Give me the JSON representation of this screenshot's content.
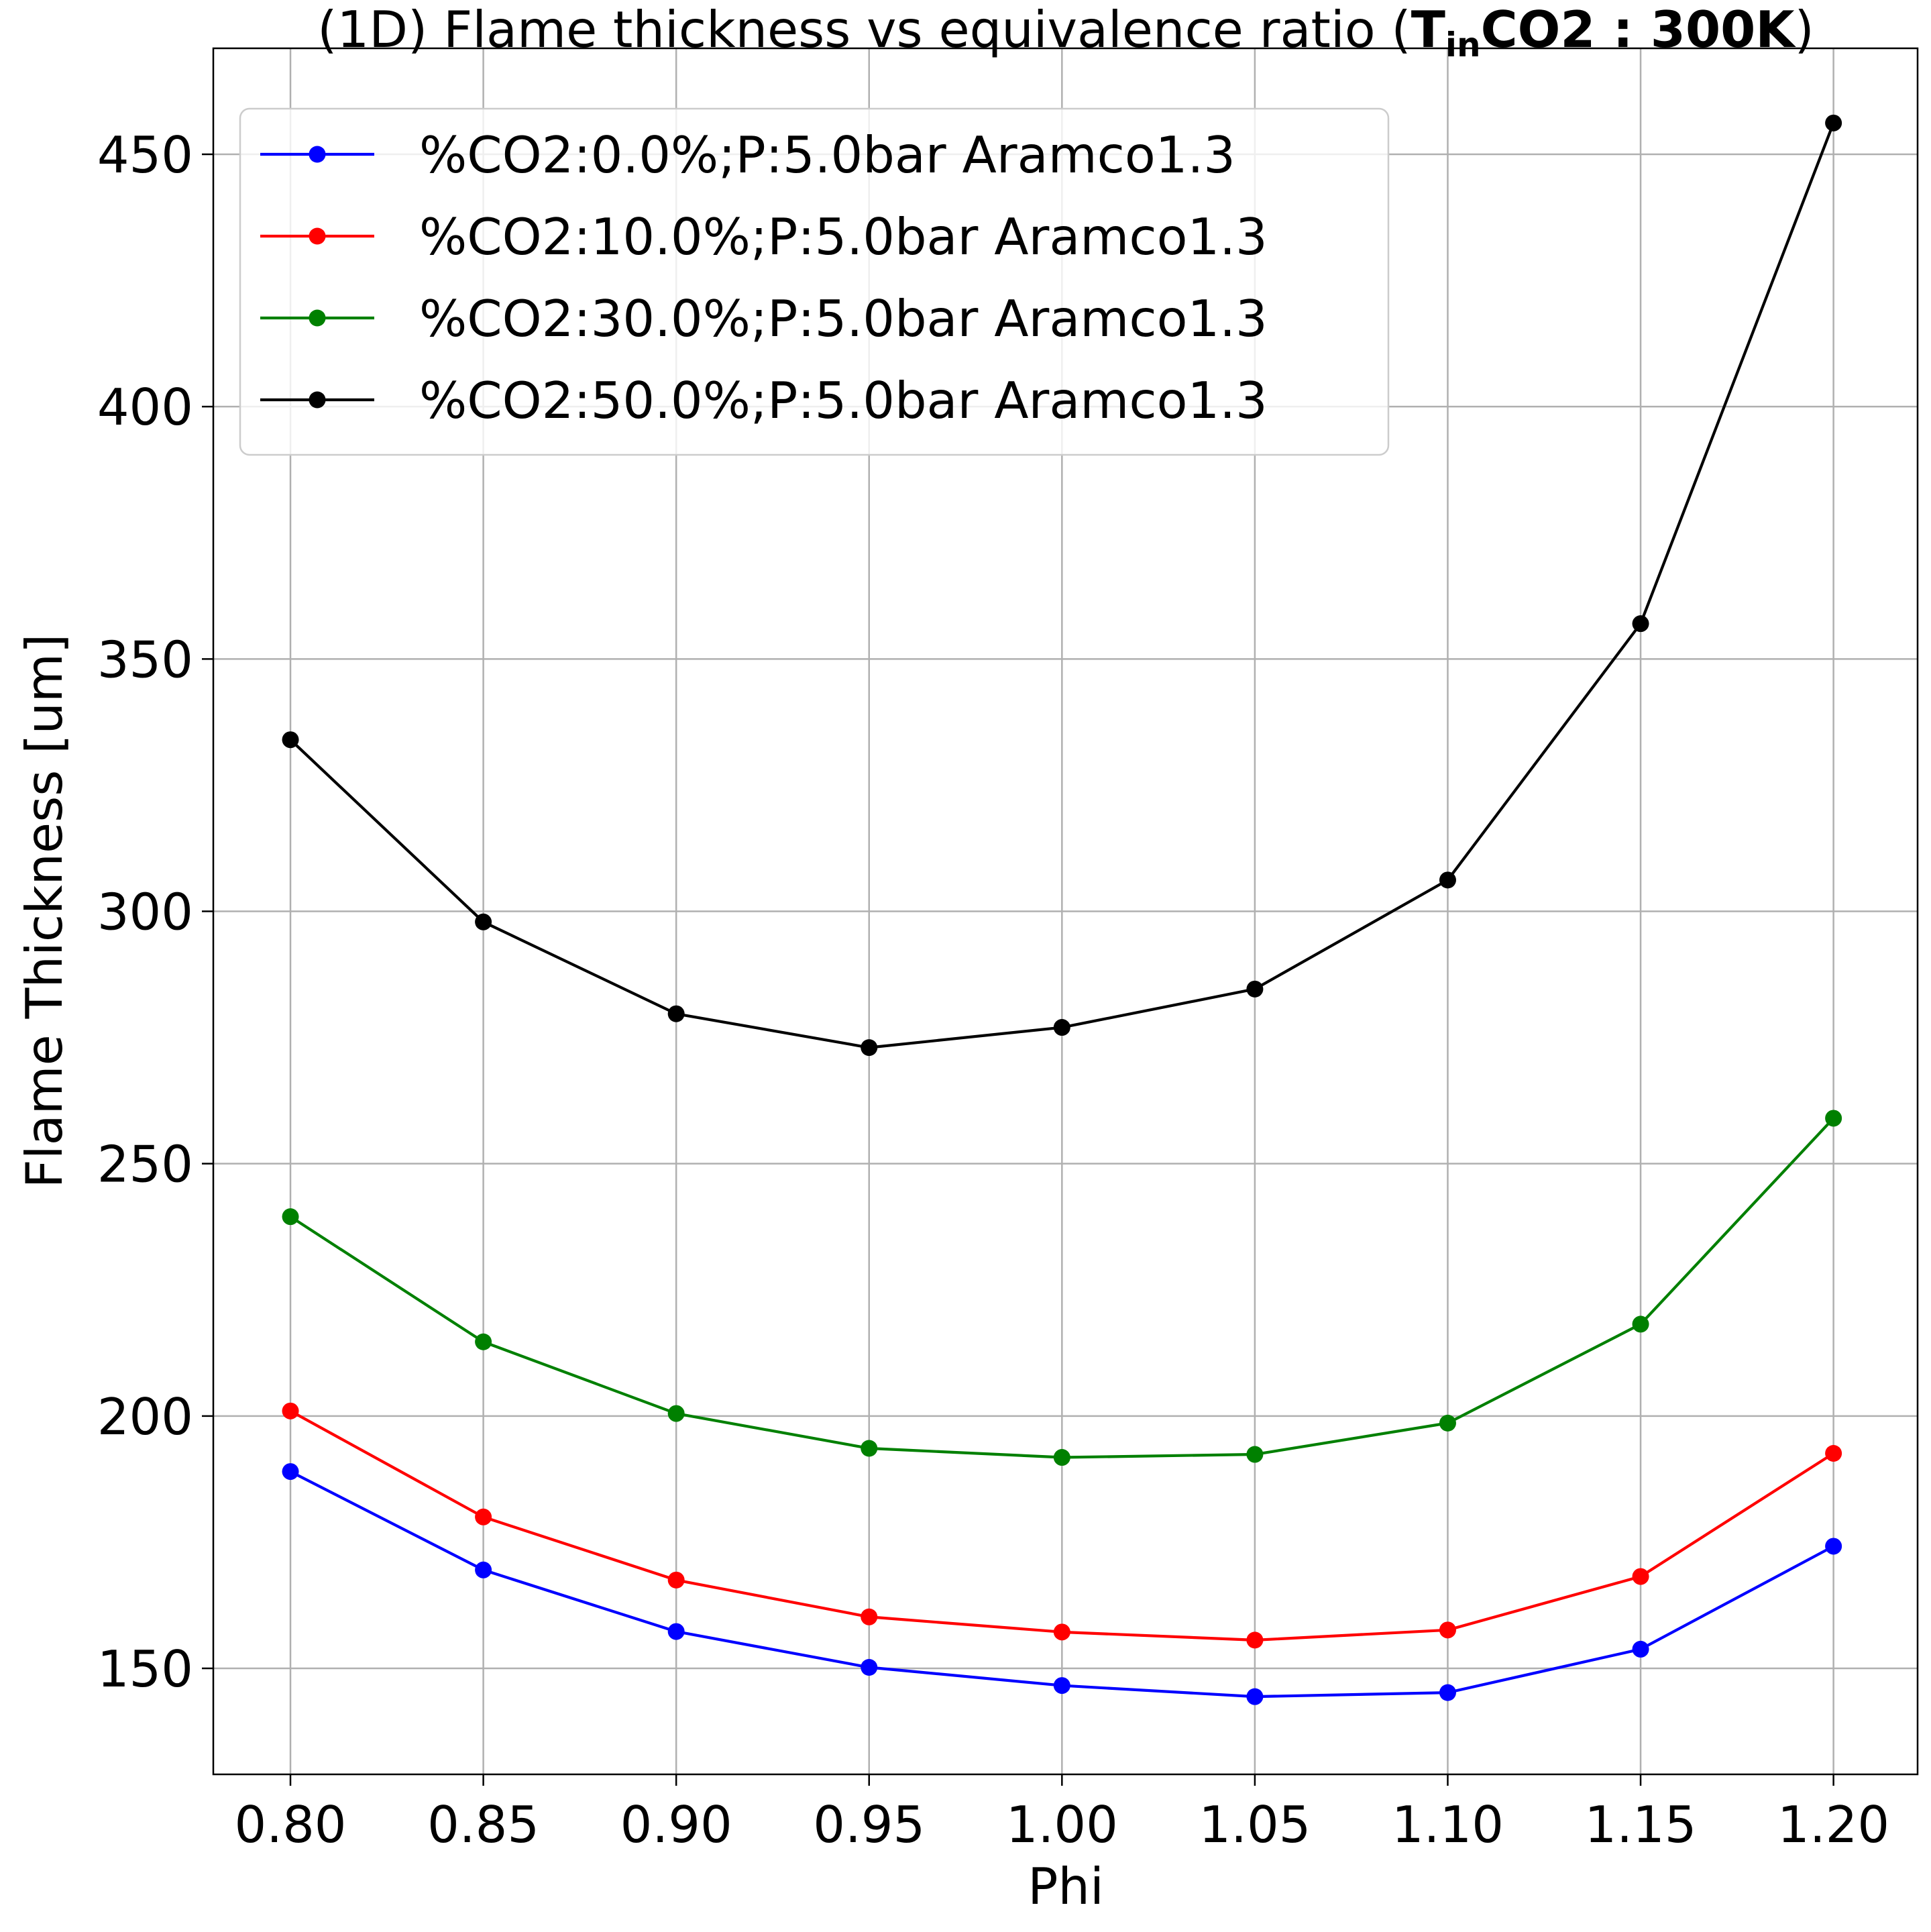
{
  "chart_data": {
    "type": "line",
    "title_prefix": "(1D) Flame thickness vs equivalence ratio (",
    "title_bold_main": "T",
    "title_bold_sub": "in",
    "title_bold_rest": "CO2 : 300K",
    "title_suffix": ")",
    "xlabel": "Phi",
    "ylabel": "Flame Thickness [um]",
    "x": [
      0.8,
      0.85,
      0.9,
      0.95,
      1.0,
      1.05,
      1.1,
      1.15,
      1.2
    ],
    "x_tick_labels": [
      "0.80",
      "0.85",
      "0.90",
      "0.95",
      "1.00",
      "1.05",
      "1.10",
      "1.15",
      "1.20"
    ],
    "y_ticks": [
      150,
      200,
      250,
      300,
      350,
      400,
      450
    ],
    "y_tick_labels": [
      "150",
      "200",
      "250",
      "300",
      "350",
      "400",
      "450"
    ],
    "xlim": [
      0.78,
      1.2218
    ],
    "ylim": [
      129.0,
      471.0
    ],
    "grid": true,
    "legend_position": "upper-left",
    "series": [
      {
        "name": "%CO2:0.0%;P:5.0bar Aramco1.3",
        "color": "#0000ff",
        "values": [
          189.0,
          169.5,
          157.3,
          150.2,
          146.6,
          144.4,
          145.2,
          153.8,
          174.2
        ]
      },
      {
        "name": "%CO2:10.0%;P:5.0bar Aramco1.3",
        "color": "#ff0000",
        "values": [
          201.0,
          180.0,
          167.5,
          160.2,
          157.2,
          155.6,
          157.6,
          168.2,
          192.6
        ]
      },
      {
        "name": "%CO2:30.0%;P:5.0bar Aramco1.3",
        "color": "#008000",
        "values": [
          239.5,
          214.7,
          200.5,
          193.6,
          191.8,
          192.4,
          198.6,
          218.2,
          259.0
        ]
      },
      {
        "name": "%CO2:50.0%;P:5.0bar Aramco1.3",
        "color": "#000000",
        "values": [
          334.0,
          297.9,
          279.7,
          273.0,
          277.0,
          284.6,
          306.2,
          357.0,
          456.2
        ]
      }
    ]
  }
}
